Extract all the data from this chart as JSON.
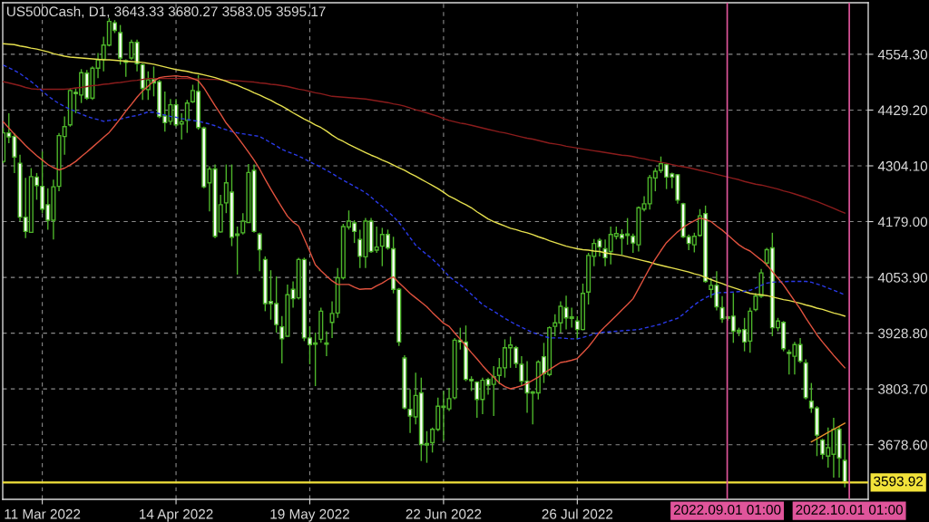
{
  "chart_data": {
    "type": "candlestick",
    "title": "US500Cash, D1, 3643.33 3680.27 3583.05 3595.17",
    "color": "#4db52a",
    "categories": [
      null,
      null,
      null,
      null,
      null,
      null,
      null,
      "11 Mar 2022",
      null,
      null,
      null,
      null,
      null,
      null,
      null,
      null,
      null,
      null,
      null,
      null,
      null,
      null,
      null,
      null,
      null,
      null,
      null,
      null,
      null,
      null,
      null,
      "14 Apr 2022",
      null,
      null,
      null,
      null,
      null,
      null,
      null,
      null,
      null,
      null,
      null,
      null,
      null,
      null,
      null,
      null,
      null,
      null,
      null,
      null,
      null,
      null,
      null,
      "19 May 2022",
      null,
      null,
      null,
      null,
      null,
      null,
      null,
      null,
      null,
      null,
      null,
      null,
      null,
      null,
      null,
      null,
      null,
      null,
      null,
      null,
      null,
      null,
      null,
      "22 Jun 2022",
      null,
      null,
      null,
      null,
      null,
      null,
      null,
      null,
      null,
      null,
      null,
      null,
      null,
      null,
      null,
      null,
      null,
      null,
      null,
      null,
      null,
      null,
      null,
      "26 Jul 2022",
      null,
      null,
      null,
      null,
      null,
      null,
      null,
      null,
      null,
      null,
      null,
      null,
      null,
      null,
      null,
      null,
      null,
      null,
      null,
      null,
      null,
      null,
      null,
      null,
      null,
      null,
      null,
      null,
      null,
      null,
      null,
      null,
      null,
      null,
      null,
      null,
      null,
      null,
      null,
      null,
      null,
      null,
      null,
      null,
      null,
      null,
      null,
      null
    ],
    "ohlc": [
      [
        4314,
        4389,
        4310,
        4378
      ],
      [
        4378,
        4422,
        4355,
        4369
      ],
      [
        4370,
        4378,
        4288,
        4324
      ],
      [
        4310,
        4329,
        4180,
        4189
      ],
      [
        4189,
        4277,
        4142,
        4157
      ],
      [
        4155,
        4299,
        4154,
        4280
      ],
      [
        4279,
        4288,
        4228,
        4260
      ],
      [
        4258,
        4336,
        4198,
        4207
      ],
      [
        4217,
        4254,
        4161,
        4182
      ],
      [
        4182,
        4273,
        4139,
        4257
      ],
      [
        4258,
        4378,
        4247,
        4372
      ],
      [
        4370,
        4415,
        4329,
        4392
      ],
      [
        4396,
        4478,
        4392,
        4473
      ],
      [
        4469,
        4478,
        4422,
        4466
      ],
      [
        4463,
        4521,
        4445,
        4513
      ],
      [
        4512,
        4519,
        4452,
        4456
      ],
      [
        4456,
        4527,
        4452,
        4523
      ],
      [
        4523,
        4557,
        4501,
        4542
      ],
      [
        4543,
        4594,
        4516,
        4575
      ],
      [
        4575,
        4635,
        4572,
        4628
      ],
      [
        4625,
        4631,
        4602,
        4608
      ],
      [
        4603,
        4620,
        4531,
        4546
      ],
      [
        4540,
        4543,
        4504,
        4536
      ],
      [
        4546,
        4587,
        4542,
        4581
      ],
      [
        4581,
        4587,
        4516,
        4533
      ],
      [
        4531,
        4534,
        4452,
        4478
      ],
      [
        4475,
        4516,
        4452,
        4497
      ],
      [
        4498,
        4527,
        4460,
        4490
      ],
      [
        4493,
        4497,
        4411,
        4415
      ],
      [
        4416,
        4471,
        4381,
        4401
      ],
      [
        4404,
        4454,
        4396,
        4441
      ],
      [
        4441,
        4454,
        4392,
        4396
      ],
      [
        4398,
        4422,
        4363,
        4403
      ],
      [
        4406,
        4452,
        4378,
        4445
      ],
      [
        4448,
        4486,
        4445,
        4473
      ],
      [
        4471,
        4508,
        4385,
        4390
      ],
      [
        4389,
        4392,
        4254,
        4257
      ],
      [
        4266,
        4303,
        4202,
        4297
      ],
      [
        4297,
        4307,
        4142,
        4146
      ],
      [
        4156,
        4239,
        4154,
        4217
      ],
      [
        4221,
        4307,
        4198,
        4266
      ],
      [
        4245,
        4307,
        4124,
        4144
      ],
      [
        4151,
        4168,
        4060,
        4148
      ],
      [
        4154,
        4198,
        4150,
        4180
      ],
      [
        4177,
        4308,
        4176,
        4289
      ],
      [
        4294,
        4307,
        4154,
        4157
      ],
      [
        4151,
        4154,
        4068,
        4116
      ],
      [
        4094,
        4101,
        3978,
        3995
      ],
      [
        4000,
        4070,
        3959,
        3995
      ],
      [
        3995,
        4056,
        3930,
        3948
      ],
      [
        3943,
        3967,
        3861,
        3916
      ],
      [
        3922,
        4038,
        3921,
        4015
      ],
      [
        4027,
        4045,
        3986,
        4006
      ],
      [
        4008,
        4098,
        4004,
        4094
      ],
      [
        4094,
        4098,
        3911,
        3918
      ],
      [
        3918,
        3944,
        3859,
        3903
      ],
      [
        3907,
        3930,
        3810,
        3904
      ],
      [
        3915,
        3986,
        3907,
        3978
      ],
      [
        3907,
        3933,
        3877,
        3904
      ],
      [
        3953,
        4000,
        3918,
        3973
      ],
      [
        3974,
        4075,
        3963,
        4053
      ],
      [
        4053,
        4174,
        4049,
        4168
      ],
      [
        4167,
        4204,
        4161,
        4180
      ],
      [
        4176,
        4182,
        4131,
        4157
      ],
      [
        4139,
        4161,
        4075,
        4101
      ],
      [
        4100,
        4187,
        4075,
        4180
      ],
      [
        4180,
        4187,
        4109,
        4112
      ],
      [
        4115,
        4168,
        4109,
        4122
      ],
      [
        4124,
        4165,
        4079,
        4150
      ],
      [
        4150,
        4161,
        4116,
        4120
      ],
      [
        4118,
        4145,
        4018,
        4027
      ],
      [
        4027,
        4030,
        3900,
        3909
      ],
      [
        3873,
        3879,
        3758,
        3761
      ],
      [
        3758,
        3803,
        3705,
        3743
      ],
      [
        3741,
        3840,
        3724,
        3789
      ],
      [
        3795,
        3829,
        3642,
        3679
      ],
      [
        3681,
        3709,
        3638,
        3678
      ],
      [
        3683,
        3717,
        3661,
        3713
      ],
      [
        3713,
        3784,
        3709,
        3765
      ],
      [
        3762,
        3799,
        3687,
        3765
      ],
      [
        3759,
        3806,
        3754,
        3782
      ],
      [
        3784,
        3918,
        3780,
        3913
      ],
      [
        3913,
        3941,
        3892,
        3909
      ],
      [
        3909,
        3946,
        3821,
        3825
      ],
      [
        3825,
        3832,
        3799,
        3822
      ],
      [
        3819,
        3821,
        3739,
        3780
      ],
      [
        3780,
        3829,
        3747,
        3823
      ],
      [
        3825,
        3829,
        3791,
        3812
      ],
      [
        3814,
        3855,
        3743,
        3831
      ],
      [
        3834,
        3873,
        3814,
        3851
      ],
      [
        3851,
        3915,
        3829,
        3896
      ],
      [
        3896,
        3921,
        3851,
        3902
      ],
      [
        3896,
        3900,
        3851,
        3861
      ],
      [
        3859,
        3877,
        3810,
        3821
      ],
      [
        3821,
        3866,
        3750,
        3795
      ],
      [
        3797,
        3799,
        3724,
        3794
      ],
      [
        3795,
        3868,
        3780,
        3864
      ],
      [
        3876,
        3907,
        3817,
        3838
      ],
      [
        3836,
        3944,
        3832,
        3941
      ],
      [
        3944,
        3971,
        3922,
        3952
      ],
      [
        3952,
        4000,
        3930,
        3989
      ],
      [
        3986,
        4013,
        3937,
        3963
      ],
      [
        3965,
        3986,
        3941,
        3962
      ],
      [
        3956,
        3967,
        3915,
        3937
      ],
      [
        3937,
        4040,
        3935,
        4018
      ],
      [
        4021,
        4109,
        3993,
        4103
      ],
      [
        4101,
        4140,
        4079,
        4130
      ],
      [
        4137,
        4142,
        4101,
        4122
      ],
      [
        4118,
        4139,
        4079,
        4098
      ],
      [
        4112,
        4168,
        4083,
        4150
      ],
      [
        4146,
        4168,
        4139,
        4152
      ],
      [
        4150,
        4162,
        4105,
        4142
      ],
      [
        4151,
        4187,
        4127,
        4148
      ],
      [
        4146,
        4152,
        4109,
        4131
      ],
      [
        4127,
        4213,
        4112,
        4210
      ],
      [
        4207,
        4236,
        4202,
        4219
      ],
      [
        4219,
        4284,
        4206,
        4278
      ],
      [
        4277,
        4299,
        4247,
        4292
      ],
      [
        4294,
        4325,
        4288,
        4309
      ],
      [
        4307,
        4310,
        4252,
        4279
      ],
      [
        4286,
        4289,
        4254,
        4279
      ],
      [
        4284,
        4286,
        4219,
        4227
      ],
      [
        4219,
        4221,
        4142,
        4145
      ],
      [
        4145,
        4150,
        4115,
        4130
      ],
      [
        4127,
        4154,
        4110,
        4146
      ],
      [
        4148,
        4207,
        4145,
        4192
      ],
      [
        4197,
        4215,
        4042,
        4045
      ],
      [
        4027,
        4053,
        4008,
        4036
      ],
      [
        4036,
        4068,
        3980,
        3988
      ],
      [
        3986,
        4012,
        3952,
        3961
      ],
      [
        3965,
        3967,
        3957,
        3962
      ],
      [
        3967,
        4019,
        3907,
        3933
      ],
      [
        3935,
        3941,
        3922,
        3932
      ],
      [
        3937,
        3963,
        3888,
        3909
      ],
      [
        3911,
        3986,
        3885,
        3978
      ],
      [
        3982,
        4019,
        3978,
        4012
      ],
      [
        4012,
        4073,
        4008,
        4064
      ],
      [
        4086,
        4120,
        4079,
        4116
      ],
      [
        4120,
        4154,
        3922,
        3941
      ],
      [
        3941,
        3963,
        3933,
        3956
      ],
      [
        3953,
        3956,
        3888,
        3894
      ],
      [
        3886,
        3892,
        3836,
        3883
      ],
      [
        3877,
        3909,
        3836,
        3903
      ],
      [
        3903,
        3918,
        3862,
        3866
      ],
      [
        3862,
        3870,
        3780,
        3784
      ],
      [
        3776,
        3817,
        3750,
        3761
      ],
      [
        3761,
        3765,
        3653,
        3700
      ],
      [
        3689,
        3692,
        3646,
        3657
      ],
      [
        3653,
        3717,
        3627,
        3672
      ],
      [
        3657,
        3739,
        3605,
        3713
      ],
      [
        3713,
        3720,
        3605,
        3649
      ],
      [
        3643.33,
        3680.27,
        3583.05,
        3595.17
      ]
    ],
    "series": [
      {
        "type": "line",
        "color": "#8b1c1c",
        "values": [
          4493,
          4490,
          4487,
          4484,
          4480,
          4477,
          4476,
          4476,
          4476,
          4476,
          4476,
          4476,
          4477,
          4479,
          4480,
          4482,
          4484,
          4485,
          4487,
          4488,
          4490,
          4491,
          4493,
          4495,
          4496,
          4498,
          4500,
          4500,
          4500,
          4500,
          4500,
          4500,
          4500,
          4500,
          4499,
          4499,
          4499,
          4498,
          4498,
          4497,
          4496,
          4496,
          4495,
          4494,
          4493,
          4492,
          4490,
          4489,
          4487,
          4486,
          4484,
          4482,
          4479,
          4476,
          4474,
          4471,
          4468,
          4466,
          4463,
          4460,
          4459,
          4458,
          4457,
          4456,
          4455,
          4454,
          4452,
          4450,
          4448,
          4446,
          4443,
          4441,
          4438,
          4434,
          4430,
          4427,
          4423,
          4419,
          4415,
          4410,
          4406,
          4403,
          4400,
          4398,
          4395,
          4392,
          4389,
          4386,
          4383,
          4380,
          4378,
          4375,
          4372,
          4369,
          4366,
          4364,
          4361,
          4358,
          4355,
          4353,
          4351,
          4348,
          4346,
          4344,
          4342,
          4340,
          4338,
          4336,
          4334,
          4332,
          4330,
          4328,
          4327,
          4325,
          4322,
          4320,
          4317,
          4315,
          4312,
          4310,
          4307,
          4304,
          4302,
          4300,
          4297,
          4294,
          4291,
          4288,
          4285,
          4282,
          4279,
          4276,
          4273,
          4269,
          4266,
          4263,
          4261,
          4258,
          4255,
          4252,
          4248,
          4245,
          4241,
          4237,
          4233,
          4228,
          4224,
          4219,
          4214,
          4209,
          4203,
          4198
        ]
      },
      {
        "type": "line",
        "color": "#e6e04e",
        "values": [
          4578,
          4577,
          4576,
          4573,
          4571,
          4568,
          4566,
          4563,
          4560,
          4556,
          4553,
          4550,
          4548,
          4547,
          4546,
          4545,
          4544,
          4543,
          4542,
          4542,
          4541,
          4540,
          4539,
          4538,
          4537,
          4536,
          4534,
          4532,
          4529,
          4526,
          4523,
          4520,
          4518,
          4516,
          4513,
          4511,
          4508,
          4505,
          4502,
          4498,
          4494,
          4489,
          4485,
          4479,
          4474,
          4468,
          4463,
          4457,
          4451,
          4444,
          4438,
          4431,
          4423,
          4416,
          4409,
          4403,
          4396,
          4390,
          4382,
          4373,
          4365,
          4359,
          4352,
          4346,
          4340,
          4334,
          4328,
          4323,
          4317,
          4312,
          4306,
          4300,
          4294,
          4287,
          4281,
          4274,
          4267,
          4260,
          4253,
          4245,
          4236,
          4230,
          4223,
          4217,
          4210,
          4201,
          4193,
          4185,
          4179,
          4174,
          4169,
          4164,
          4161,
          4157,
          4154,
          4150,
          4145,
          4141,
          4136,
          4132,
          4128,
          4124,
          4121,
          4118,
          4116,
          4115,
          4113,
          4112,
          4109,
          4107,
          4105,
          4103,
          4100,
          4097,
          4094,
          4091,
          4088,
          4084,
          4081,
          4078,
          4075,
          4072,
          4069,
          4066,
          4062,
          4059,
          4054,
          4049,
          4044,
          4040,
          4035,
          4031,
          4027,
          4022,
          4018,
          4016,
          4015,
          4013,
          4010,
          4007,
          4004,
          4002,
          3999,
          3996,
          3992,
          3989,
          3985,
          3982,
          3978,
          3974,
          3971,
          3967
        ]
      },
      {
        "type": "line",
        "color": "#2a3ae8",
        "line_style": "dashed",
        "values": [
          4530,
          4524,
          4518,
          4511,
          4502,
          4493,
          4483,
          4472,
          4461,
          4452,
          4444,
          4437,
          4431,
          4426,
          4420,
          4415,
          4411,
          4408,
          4404,
          4406,
          4407,
          4409,
          4412,
          4415,
          4417,
          4421,
          4425,
          4424,
          4421,
          4418,
          4415,
          4413,
          4410,
          4408,
          4406,
          4404,
          4401,
          4398,
          4394,
          4389,
          4385,
          4381,
          4378,
          4376,
          4374,
          4372,
          4370,
          4363,
          4356,
          4349,
          4341,
          4336,
          4331,
          4326,
          4320,
          4313,
          4307,
          4301,
          4294,
          4287,
          4279,
          4272,
          4265,
          4258,
          4251,
          4244,
          4234,
          4223,
          4213,
          4202,
          4190,
          4177,
          4160,
          4143,
          4126,
          4115,
          4105,
          4095,
          4083,
          4070,
          4056,
          4046,
          4037,
          4027,
          4016,
          4004,
          3993,
          3985,
          3978,
          3970,
          3962,
          3955,
          3948,
          3942,
          3936,
          3930,
          3926,
          3922,
          3918,
          3918,
          3918,
          3917,
          3916,
          3916,
          3919,
          3923,
          3927,
          3930,
          3931,
          3932,
          3933,
          3934,
          3935,
          3936,
          3937,
          3940,
          3943,
          3946,
          3949,
          3954,
          3958,
          3962,
          3971,
          3982,
          3992,
          4001,
          4008,
          4014,
          4019,
          4020,
          4020,
          4021,
          4022,
          4023,
          4025,
          4030,
          4036,
          4041,
          4043,
          4044,
          4044,
          4045,
          4045,
          4045,
          4045,
          4043,
          4039,
          4035,
          4030,
          4025,
          4020,
          4015
        ]
      },
      {
        "type": "line",
        "color": "#e0523e",
        "values": [
          4403,
          4389,
          4375,
          4363,
          4350,
          4338,
          4327,
          4317,
          4307,
          4300,
          4295,
          4299,
          4306,
          4314,
          4325,
          4335,
          4346,
          4357,
          4368,
          4379,
          4394,
          4410,
          4427,
          4442,
          4458,
          4472,
          4483,
          4494,
          4502,
          4504,
          4505,
          4506,
          4504,
          4504,
          4500,
          4495,
          4479,
          4459,
          4439,
          4420,
          4400,
          4385,
          4369,
          4352,
          4335,
          4317,
          4297,
          4274,
          4252,
          4231,
          4211,
          4191,
          4178,
          4169,
          4141,
          4112,
          4082,
          4069,
          4057,
          4046,
          4038,
          4038,
          4038,
          4032,
          4027,
          4028,
          4028,
          4035,
          4041,
          4049,
          4055,
          4042,
          4030,
          4018,
          4008,
          3998,
          3988,
          3975,
          3963,
          3951,
          3944,
          3929,
          3915,
          3900,
          3885,
          3871,
          3856,
          3842,
          3830,
          3817,
          3809,
          3804,
          3807,
          3811,
          3816,
          3823,
          3830,
          3839,
          3847,
          3855,
          3863,
          3865,
          3868,
          3872,
          3885,
          3898,
          3914,
          3931,
          3944,
          3956,
          3968,
          3981,
          3993,
          4006,
          4029,
          4052,
          4075,
          4095,
          4114,
          4132,
          4144,
          4156,
          4166,
          4174,
          4181,
          4187,
          4184,
          4179,
          4169,
          4160,
          4149,
          4138,
          4127,
          4119,
          4113,
          4103,
          4093,
          4082,
          4067,
          4052,
          4037,
          4019,
          4001,
          3983,
          3963,
          3944,
          3925,
          3909,
          3894,
          3879,
          3865,
          3851
        ]
      },
      {
        "type": "line",
        "color": "#e8902a",
        "values": [
          null,
          null,
          null,
          null,
          null,
          null,
          null,
          null,
          null,
          null,
          null,
          null,
          null,
          null,
          null,
          null,
          null,
          null,
          null,
          null,
          null,
          null,
          null,
          null,
          null,
          null,
          null,
          null,
          null,
          null,
          null,
          null,
          null,
          null,
          null,
          null,
          null,
          null,
          null,
          null,
          null,
          null,
          null,
          null,
          null,
          null,
          null,
          null,
          null,
          null,
          null,
          null,
          null,
          null,
          null,
          null,
          null,
          null,
          null,
          null,
          null,
          null,
          null,
          null,
          null,
          null,
          null,
          null,
          null,
          null,
          null,
          null,
          null,
          null,
          null,
          null,
          null,
          null,
          null,
          null,
          null,
          null,
          null,
          null,
          null,
          null,
          null,
          null,
          null,
          null,
          null,
          null,
          null,
          null,
          null,
          null,
          null,
          null,
          null,
          null,
          null,
          null,
          null,
          null,
          null,
          null,
          null,
          null,
          null,
          null,
          null,
          null,
          null,
          null,
          null,
          null,
          null,
          null,
          null,
          null,
          null,
          null,
          null,
          null,
          null,
          null,
          null,
          null,
          null,
          null,
          null,
          null,
          null,
          null,
          null,
          null,
          null,
          null,
          null,
          null,
          null,
          null,
          null,
          null,
          null,
          3685,
          3692,
          3699,
          3706,
          3713,
          3720,
          3727
        ]
      }
    ],
    "ref_lines": [
      {
        "axis": "y",
        "value": 3593.92,
        "label": "3593.92",
        "color": "#f2e23a"
      }
    ],
    "annotations": [
      "2022.09.01 01:00",
      "2022.10.01 01:00"
    ],
    "ylim": [
      3556,
      4670
    ],
    "yticks": [
      {
        "value": 3678.6,
        "label": "3678.60"
      },
      {
        "value": 3803.7,
        "label": "3803.70"
      },
      {
        "value": 3928.8,
        "label": "3928.80"
      },
      {
        "value": 4053.9,
        "label": "4053.90"
      },
      {
        "value": 4179.0,
        "label": "4179.00"
      },
      {
        "value": 4304.1,
        "label": "4304.10"
      },
      {
        "value": 4429.2,
        "label": "4429.20"
      },
      {
        "value": 4554.3,
        "label": "4554.30"
      }
    ],
    "grid": true
  }
}
